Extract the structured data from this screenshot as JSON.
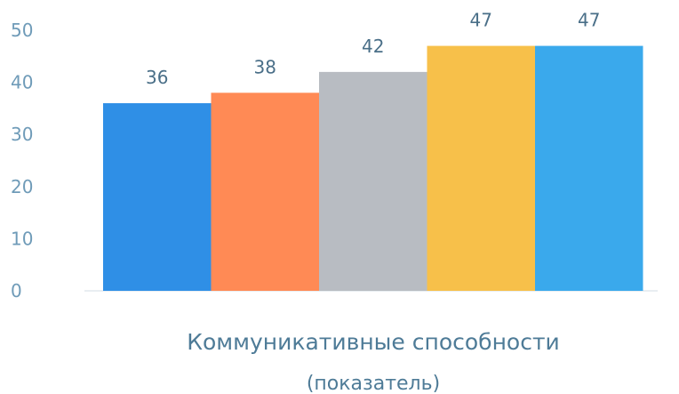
{
  "chart_data": {
    "type": "bar",
    "categories": [
      "",
      "",
      "",
      "",
      ""
    ],
    "values": [
      36,
      38,
      42,
      47,
      47
    ],
    "colors": [
      "#2f8fe6",
      "#ff8a55",
      "#b8bcc2",
      "#f7c04a",
      "#3aa9ec"
    ],
    "xlabel": "Коммуникативные способности",
    "xlabel_sub": "(показатель)",
    "ylabel": "",
    "ylim": [
      0,
      50
    ],
    "yticks": [
      0,
      10,
      20,
      30,
      40,
      50
    ],
    "grid": false,
    "data_labels": [
      "36",
      "38",
      "42",
      "47",
      "47"
    ]
  }
}
